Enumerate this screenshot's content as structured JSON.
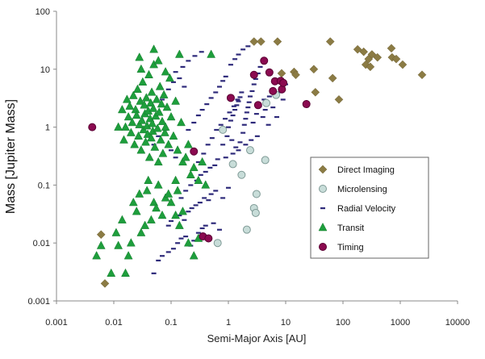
{
  "chart_data": {
    "type": "scatter",
    "title": "",
    "xlabel": "Semi-Major Axis [AU]",
    "ylabel": "Mass [Jupiter Mass]",
    "xscale": "log",
    "yscale": "log",
    "xlim": [
      0.001,
      10000
    ],
    "ylim": [
      0.001,
      100
    ],
    "x_ticks": [
      "0.001",
      "0.01",
      "0.1",
      "1",
      "10",
      "100",
      "1000",
      "10000"
    ],
    "y_ticks": [
      "100",
      "10",
      "1",
      "0.1",
      "0.01",
      "0.001"
    ],
    "grid": false,
    "legend_position": "center-right",
    "series": [
      {
        "name": "Direct Imaging",
        "marker": "diamond",
        "color": "#8B7B44",
        "points": [
          [
            0.006,
            0.014
          ],
          [
            0.007,
            0.002
          ],
          [
            2.8,
            30
          ],
          [
            3.7,
            30
          ],
          [
            7.2,
            30
          ],
          [
            8.5,
            8.5
          ],
          [
            14,
            9
          ],
          [
            15,
            8
          ],
          [
            31,
            10
          ],
          [
            33,
            4
          ],
          [
            60,
            30
          ],
          [
            66,
            7
          ],
          [
            85,
            3
          ],
          [
            180,
            22
          ],
          [
            230,
            20
          ],
          [
            250,
            12
          ],
          [
            280,
            15
          ],
          [
            300,
            11
          ],
          [
            320,
            18
          ],
          [
            400,
            16
          ],
          [
            700,
            23
          ],
          [
            720,
            16
          ],
          [
            850,
            15
          ],
          [
            1100,
            12
          ],
          [
            2400,
            8
          ]
        ]
      },
      {
        "name": "Microlensing",
        "marker": "circle",
        "color": "#C8DDD9",
        "points": [
          [
            0.65,
            0.01
          ],
          [
            0.8,
            0.9
          ],
          [
            1.2,
            0.23
          ],
          [
            1.7,
            0.15
          ],
          [
            2.1,
            0.017
          ],
          [
            2.4,
            0.4
          ],
          [
            2.8,
            0.04
          ],
          [
            3.0,
            0.033
          ],
          [
            3.1,
            0.07
          ],
          [
            4.4,
            0.27
          ],
          [
            4.6,
            2.6
          ],
          [
            6.8,
            3.6
          ]
        ]
      },
      {
        "name": "Radial Velocity",
        "marker": "dash",
        "color": "#2E2A7A",
        "points": [
          [
            0.05,
            0.003
          ],
          [
            0.06,
            0.005
          ],
          [
            0.07,
            0.006
          ],
          [
            0.09,
            0.007
          ],
          [
            0.11,
            0.008
          ],
          [
            0.13,
            0.01
          ],
          [
            0.15,
            0.012
          ],
          [
            0.18,
            0.013
          ],
          [
            0.22,
            0.009
          ],
          [
            0.25,
            0.011
          ],
          [
            0.3,
            0.015
          ],
          [
            0.35,
            0.018
          ],
          [
            0.4,
            0.02
          ],
          [
            0.55,
            0.022
          ],
          [
            0.7,
            0.017
          ],
          [
            0.09,
            0.02
          ],
          [
            0.1,
            0.024
          ],
          [
            0.12,
            0.028
          ],
          [
            0.14,
            0.03
          ],
          [
            0.17,
            0.025
          ],
          [
            0.2,
            0.035
          ],
          [
            0.23,
            0.04
          ],
          [
            0.27,
            0.045
          ],
          [
            0.32,
            0.05
          ],
          [
            0.38,
            0.06
          ],
          [
            0.45,
            0.055
          ],
          [
            0.5,
            0.07
          ],
          [
            0.6,
            0.08
          ],
          [
            0.8,
            0.06
          ],
          [
            1.0,
            0.09
          ],
          [
            0.15,
            0.06
          ],
          [
            0.18,
            0.08
          ],
          [
            0.22,
            0.1
          ],
          [
            0.28,
            0.12
          ],
          [
            0.33,
            0.15
          ],
          [
            0.4,
            0.17
          ],
          [
            0.48,
            0.2
          ],
          [
            0.58,
            0.22
          ],
          [
            0.65,
            0.28
          ],
          [
            0.9,
            0.3
          ],
          [
            1.2,
            0.35
          ],
          [
            1.5,
            0.4
          ],
          [
            2.0,
            0.5
          ],
          [
            2.5,
            0.6
          ],
          [
            3.2,
            0.7
          ],
          [
            0.2,
            0.9
          ],
          [
            0.25,
            1.2
          ],
          [
            0.3,
            1.6
          ],
          [
            0.35,
            2.0
          ],
          [
            0.42,
            2.5
          ],
          [
            0.5,
            3.2
          ],
          [
            0.6,
            4.0
          ],
          [
            0.7,
            5.0
          ],
          [
            0.8,
            6.3
          ],
          [
            0.9,
            7.5
          ],
          [
            1.0,
            1.0
          ],
          [
            1.1,
            1.3
          ],
          [
            1.2,
            1.6
          ],
          [
            1.3,
            2.0
          ],
          [
            1.4,
            2.4
          ],
          [
            1.5,
            2.8
          ],
          [
            1.6,
            3.3
          ],
          [
            1.7,
            4.0
          ],
          [
            1.8,
            0.8
          ],
          [
            1.9,
            1.1
          ],
          [
            2.0,
            1.4
          ],
          [
            2.1,
            1.8
          ],
          [
            2.2,
            2.2
          ],
          [
            2.3,
            2.7
          ],
          [
            2.4,
            3.4
          ],
          [
            2.6,
            4.2
          ],
          [
            2.8,
            5.5
          ],
          [
            3.0,
            6.8
          ],
          [
            3.3,
            8.5
          ],
          [
            3.6,
            11
          ],
          [
            4.0,
            1.5
          ],
          [
            4.4,
            2.0
          ],
          [
            4.8,
            2.6
          ],
          [
            5.2,
            3.4
          ],
          [
            5.8,
            4.5
          ],
          [
            1.1,
            12
          ],
          [
            1.3,
            15
          ],
          [
            1.5,
            18
          ],
          [
            1.8,
            22
          ],
          [
            2.2,
            25
          ],
          [
            0.12,
            9
          ],
          [
            0.16,
            11
          ],
          [
            0.2,
            14
          ],
          [
            0.26,
            17
          ],
          [
            0.34,
            20
          ],
          [
            0.05,
            0.5
          ],
          [
            0.06,
            0.7
          ],
          [
            0.08,
            0.9
          ],
          [
            0.1,
            0.4
          ],
          [
            0.12,
            0.3
          ],
          [
            0.07,
            3.0
          ],
          [
            0.09,
            4.5
          ],
          [
            0.11,
            6.0
          ],
          [
            0.14,
            7.0
          ],
          [
            0.17,
            5.0
          ],
          [
            0.8,
            0.5
          ],
          [
            0.95,
            0.7
          ],
          [
            1.15,
            0.6
          ],
          [
            1.35,
            0.45
          ],
          [
            1.6,
            0.55
          ],
          [
            2.7,
            1.2
          ],
          [
            3.1,
            1.7
          ],
          [
            3.5,
            2.3
          ],
          [
            4.2,
            3.0
          ],
          [
            5.0,
            1.1
          ],
          [
            6.0,
            2.2
          ],
          [
            7.0,
            1.5
          ],
          [
            8.0,
            4.0
          ],
          [
            9.0,
            3.0
          ],
          [
            10,
            5.5
          ],
          [
            0.3,
            0.25
          ],
          [
            0.37,
            0.35
          ],
          [
            0.44,
            0.5
          ],
          [
            0.52,
            0.65
          ],
          [
            0.62,
            0.9
          ],
          [
            0.74,
            1.1
          ],
          [
            0.88,
            1.4
          ],
          [
            1.05,
            1.8
          ],
          [
            1.25,
            2.3
          ],
          [
            1.45,
            3.0
          ]
        ]
      },
      {
        "name": "Transit",
        "marker": "triangle",
        "color": "#1E9E3C",
        "points": [
          [
            0.005,
            0.006
          ],
          [
            0.006,
            0.009
          ],
          [
            0.009,
            0.003
          ],
          [
            0.011,
            0.015
          ],
          [
            0.012,
            0.009
          ],
          [
            0.014,
            0.025
          ],
          [
            0.016,
            0.003
          ],
          [
            0.018,
            0.006
          ],
          [
            0.02,
            0.01
          ],
          [
            0.022,
            0.05
          ],
          [
            0.025,
            0.035
          ],
          [
            0.028,
            0.07
          ],
          [
            0.03,
            0.015
          ],
          [
            0.035,
            0.02
          ],
          [
            0.038,
            0.08
          ],
          [
            0.04,
            0.12
          ],
          [
            0.045,
            0.025
          ],
          [
            0.05,
            0.05
          ],
          [
            0.055,
            0.04
          ],
          [
            0.06,
            0.1
          ],
          [
            0.07,
            0.03
          ],
          [
            0.08,
            0.06
          ],
          [
            0.09,
            0.07
          ],
          [
            0.1,
            0.05
          ],
          [
            0.12,
            0.03
          ],
          [
            0.14,
            0.02
          ],
          [
            0.16,
            0.035
          ],
          [
            0.2,
            0.01
          ],
          [
            0.25,
            0.006
          ],
          [
            0.3,
            0.012
          ],
          [
            0.12,
            0.12
          ],
          [
            0.13,
            0.08
          ],
          [
            0.015,
            0.6
          ],
          [
            0.016,
            1.0
          ],
          [
            0.018,
            1.5
          ],
          [
            0.019,
            2.3
          ],
          [
            0.02,
            0.8
          ],
          [
            0.021,
            1.2
          ],
          [
            0.022,
            3.5
          ],
          [
            0.023,
            0.5
          ],
          [
            0.024,
            2.0
          ],
          [
            0.025,
            1.6
          ],
          [
            0.026,
            4.5
          ],
          [
            0.027,
            0.7
          ],
          [
            0.028,
            1.1
          ],
          [
            0.029,
            2.8
          ],
          [
            0.03,
            0.4
          ],
          [
            0.031,
            1.3
          ],
          [
            0.032,
            6.0
          ],
          [
            0.033,
            0.9
          ],
          [
            0.034,
            2.4
          ],
          [
            0.035,
            1.7
          ],
          [
            0.036,
            0.55
          ],
          [
            0.037,
            3.2
          ],
          [
            0.038,
            1.05
          ],
          [
            0.039,
            0.75
          ],
          [
            0.04,
            1.9
          ],
          [
            0.041,
            8.0
          ],
          [
            0.042,
            0.3
          ],
          [
            0.043,
            1.4
          ],
          [
            0.044,
            2.6
          ],
          [
            0.045,
            0.65
          ],
          [
            0.046,
            4.0
          ],
          [
            0.047,
            1.15
          ],
          [
            0.048,
            0.85
          ],
          [
            0.049,
            2.1
          ],
          [
            0.05,
            12
          ],
          [
            0.052,
            0.45
          ],
          [
            0.054,
            1.55
          ],
          [
            0.056,
            3.0
          ],
          [
            0.058,
            0.95
          ],
          [
            0.06,
            0.25
          ],
          [
            0.062,
            1.8
          ],
          [
            0.064,
            5.0
          ],
          [
            0.066,
            0.6
          ],
          [
            0.068,
            2.5
          ],
          [
            0.07,
            1.25
          ],
          [
            0.072,
            0.35
          ],
          [
            0.075,
            3.6
          ],
          [
            0.078,
            0.8
          ],
          [
            0.08,
            1.0
          ],
          [
            0.085,
            2.2
          ],
          [
            0.09,
            0.5
          ],
          [
            0.095,
            7.0
          ],
          [
            0.1,
            1.5
          ],
          [
            0.11,
            0.7
          ],
          [
            0.12,
            2.8
          ],
          [
            0.13,
            0.4
          ],
          [
            0.14,
            18
          ],
          [
            0.15,
            1.2
          ],
          [
            0.16,
            0.25
          ],
          [
            0.18,
            0.3
          ],
          [
            0.2,
            0.5
          ],
          [
            0.22,
            0.15
          ],
          [
            0.25,
            0.2
          ],
          [
            0.3,
            0.12
          ],
          [
            0.35,
            0.25
          ],
          [
            0.4,
            0.1
          ],
          [
            0.5,
            18
          ],
          [
            0.012,
            1.0
          ],
          [
            0.014,
            2.0
          ],
          [
            0.017,
            3.0
          ],
          [
            0.05,
            22
          ],
          [
            0.06,
            14
          ],
          [
            0.08,
            9
          ],
          [
            0.03,
            10
          ],
          [
            0.028,
            16
          ]
        ]
      },
      {
        "name": "Timing",
        "marker": "circle",
        "color": "#8B0A50",
        "points": [
          [
            0.0042,
            1.0
          ],
          [
            0.25,
            0.38
          ],
          [
            0.36,
            0.013
          ],
          [
            0.45,
            0.012
          ],
          [
            1.1,
            3.2
          ],
          [
            2.8,
            8.0
          ],
          [
            3.3,
            2.4
          ],
          [
            4.2,
            14
          ],
          [
            5.2,
            8.8
          ],
          [
            6.0,
            4.2
          ],
          [
            6.5,
            6.2
          ],
          [
            8.2,
            6.3
          ],
          [
            8.6,
            4.5
          ],
          [
            9.1,
            5.8
          ],
          [
            23,
            2.5
          ]
        ]
      }
    ]
  }
}
